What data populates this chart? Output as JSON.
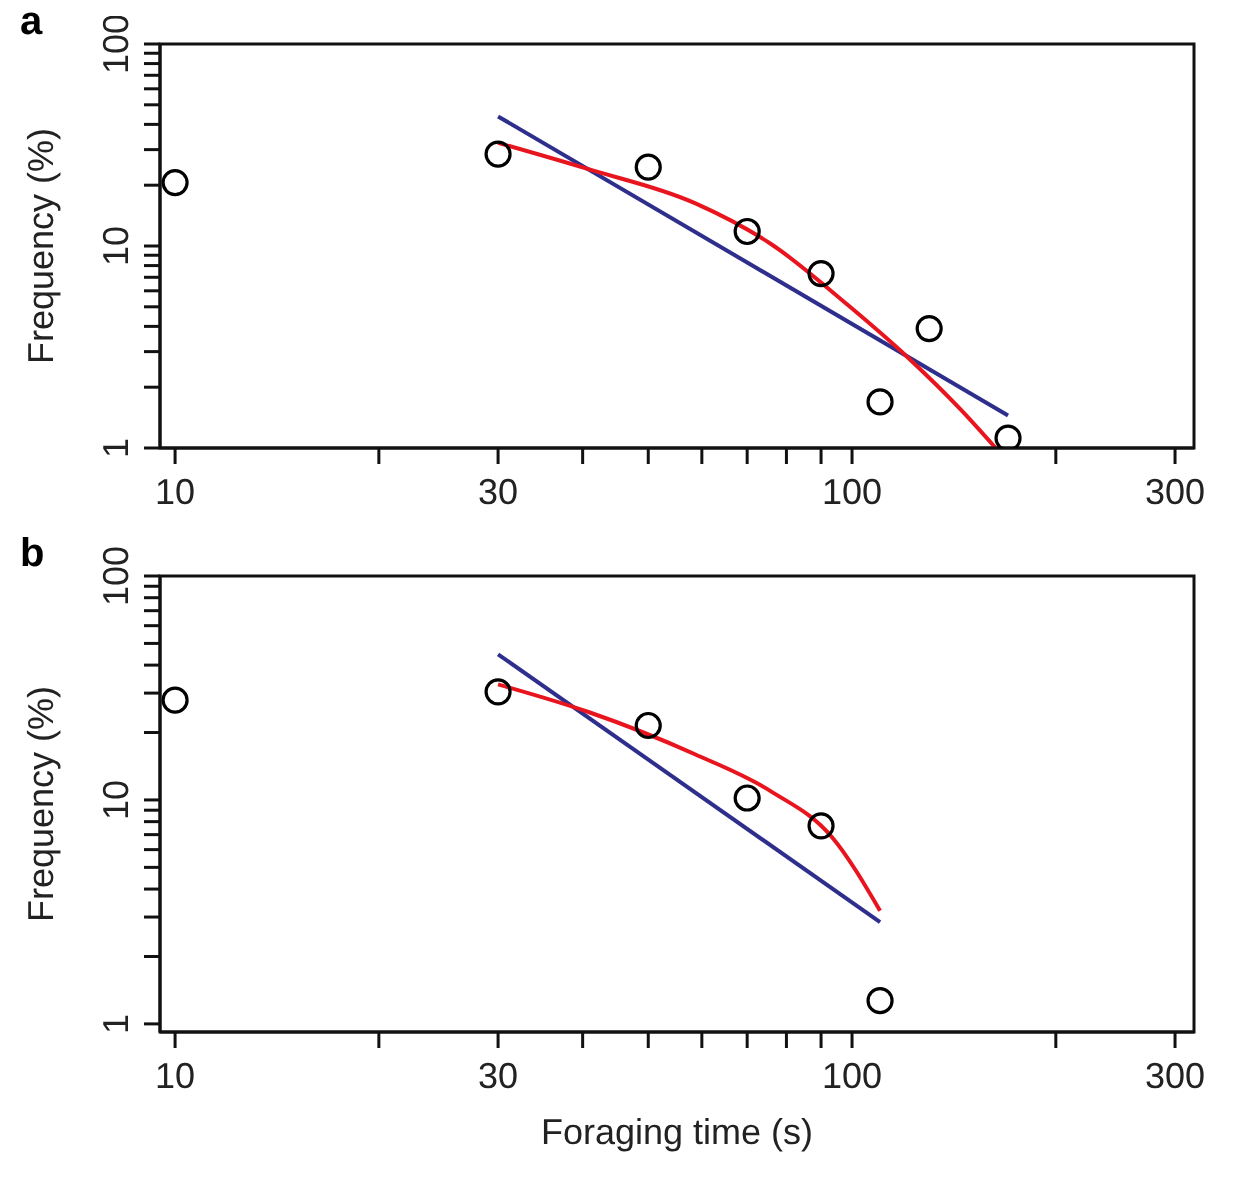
{
  "chart_data": [
    {
      "type": "scatter",
      "title": "a",
      "ylabel": "Frequency (%)",
      "log": "xy",
      "xlim": [
        9.5,
        320
      ],
      "xticks": [
        10,
        {
          "value": 20,
          "label": null
        },
        30,
        {
          "value": 40,
          "label": null
        },
        {
          "value": 50,
          "label": null
        },
        {
          "value": 60,
          "label": null
        },
        {
          "value": 70,
          "label": null
        },
        {
          "value": 80,
          "label": null
        },
        {
          "value": 90,
          "label": null
        },
        100,
        {
          "value": 200,
          "label": null
        },
        300
      ],
      "ylim": [
        1,
        100
      ],
      "yticks": [
        1,
        {
          "value": 2,
          "label": null
        },
        {
          "value": 3,
          "label": null
        },
        {
          "value": 4,
          "label": null
        },
        {
          "value": 5,
          "label": null
        },
        {
          "value": 6,
          "label": null
        },
        {
          "value": 7,
          "label": null
        },
        {
          "value": 8,
          "label": null
        },
        {
          "value": 9,
          "label": null
        },
        10,
        {
          "value": 20,
          "label": null
        },
        {
          "value": 30,
          "label": null
        },
        {
          "value": 40,
          "label": null
        },
        {
          "value": 50,
          "label": null
        },
        {
          "value": 60,
          "label": null
        },
        {
          "value": 70,
          "label": null
        },
        {
          "value": 80,
          "label": null
        },
        {
          "value": 90,
          "label": null
        },
        100
      ],
      "series": [
        {
          "marker": "circle",
          "color": "#000000",
          "x": [
            10,
            30,
            50,
            70,
            90,
            110,
            130,
            170
          ],
          "values": [
            20.6,
            28.5,
            24.6,
            11.8,
            7.3,
            1.69,
            3.9,
            1.12
          ]
        },
        {
          "type": "line",
          "color": "#2e2e8c",
          "x": [
            30,
            170
          ],
          "values": [
            43.8,
            1.45
          ]
        },
        {
          "type": "line",
          "color": "#e8141e",
          "x": [
            30,
            40.8,
            58.6,
            76,
            98.6,
            121,
            145,
            163
          ],
          "values": [
            32.4,
            24,
            16.3,
            10.2,
            5.1,
            2.8,
            1.54,
            1
          ]
        }
      ]
    },
    {
      "type": "scatter",
      "title": "b",
      "xlabel": "Foraging time (s)",
      "ylabel": "Frequency (%)",
      "log": "xy",
      "xlim": [
        9.5,
        320
      ],
      "xticks": [
        10,
        {
          "value": 20,
          "label": null
        },
        30,
        {
          "value": 40,
          "label": null
        },
        {
          "value": 50,
          "label": null
        },
        {
          "value": 60,
          "label": null
        },
        {
          "value": 70,
          "label": null
        },
        {
          "value": 80,
          "label": null
        },
        {
          "value": 90,
          "label": null
        },
        100,
        {
          "value": 200,
          "label": null
        },
        300
      ],
      "ylim": [
        0.92,
        100
      ],
      "yticks": [
        1,
        {
          "value": 2,
          "label": null
        },
        {
          "value": 3,
          "label": null
        },
        {
          "value": 4,
          "label": null
        },
        {
          "value": 5,
          "label": null
        },
        {
          "value": 6,
          "label": null
        },
        {
          "value": 7,
          "label": null
        },
        {
          "value": 8,
          "label": null
        },
        {
          "value": 9,
          "label": null
        },
        10,
        {
          "value": 20,
          "label": null
        },
        {
          "value": 30,
          "label": null
        },
        {
          "value": 40,
          "label": null
        },
        {
          "value": 50,
          "label": null
        },
        {
          "value": 60,
          "label": null
        },
        {
          "value": 70,
          "label": null
        },
        {
          "value": 80,
          "label": null
        },
        {
          "value": 90,
          "label": null
        },
        100
      ],
      "series": [
        {
          "marker": "circle",
          "color": "#000000",
          "x": [
            10,
            30,
            50,
            70,
            90,
            110
          ],
          "values": [
            27.9,
            30.4,
            21.5,
            10.2,
            7.66,
            1.27
          ]
        },
        {
          "type": "line",
          "color": "#2e2e8c",
          "x": [
            30,
            110
          ],
          "values": [
            44.7,
            2.85
          ]
        },
        {
          "type": "line",
          "color": "#e8141e",
          "x": [
            30,
            40.8,
            58.6,
            76,
            93.5,
            110
          ],
          "values": [
            32.8,
            24.7,
            16,
            10.9,
            6.8,
            3.2
          ]
        }
      ]
    }
  ]
}
